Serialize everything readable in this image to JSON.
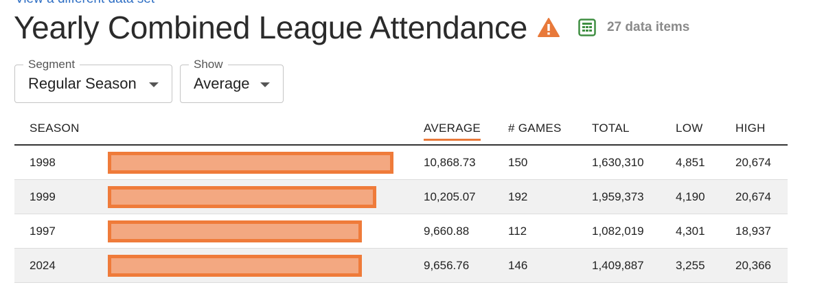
{
  "header": {
    "top_link": "View a different data set",
    "title": "Yearly Combined League Attendance",
    "warning_icon": "warning-triangle-icon",
    "items_icon": "table-grid-icon",
    "items_count": "27 data items"
  },
  "filters": {
    "segment": {
      "label": "Segment",
      "value": "Regular Season"
    },
    "show": {
      "label": "Show",
      "value": "Average"
    }
  },
  "table": {
    "columns": {
      "season": "SEASON",
      "average": "AVERAGE",
      "games": "# GAMES",
      "total": "TOTAL",
      "low": "LOW",
      "high": "HIGH"
    },
    "sorted_column": "average",
    "bar_max_average": 10868.73,
    "rows": [
      {
        "season": "1998",
        "average": "10,868.73",
        "average_value": 10868.73,
        "games": "150",
        "total": "1,630,310",
        "low": "4,851",
        "high": "20,674"
      },
      {
        "season": "1999",
        "average": "10,205.07",
        "average_value": 10205.07,
        "games": "192",
        "total": "1,959,373",
        "low": "4,190",
        "high": "20,674"
      },
      {
        "season": "1997",
        "average": "9,660.88",
        "average_value": 9660.88,
        "games": "112",
        "total": "1,082,019",
        "low": "4,301",
        "high": "18,937"
      },
      {
        "season": "2024",
        "average": "9,656.76",
        "average_value": 9656.76,
        "games": "146",
        "total": "1,409,887",
        "low": "3,255",
        "high": "20,366"
      }
    ]
  },
  "colors": {
    "accent": "#ef7b3a",
    "bar_fill": "#f3a881",
    "warning": "#e8793a",
    "grid_icon": "#3e8e41",
    "link": "#2f6fc4"
  }
}
